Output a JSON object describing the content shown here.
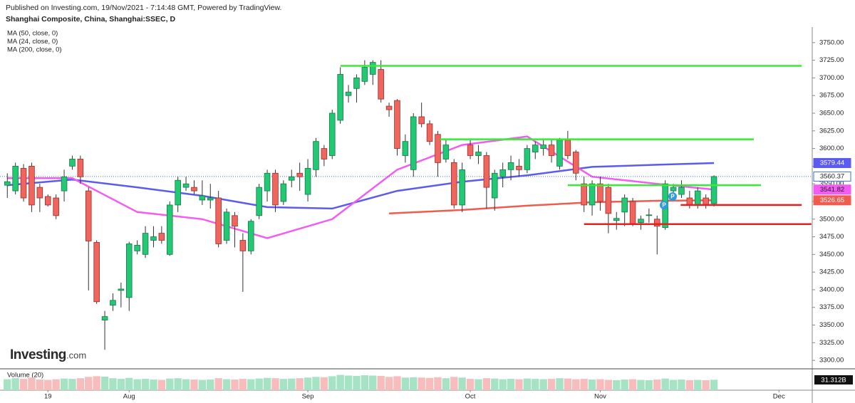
{
  "chart_data": {
    "type": "candlestick",
    "source": "Published on Investing.com, 19/Nov/2021 - 7:14:48 GMT, Powered by TradingView.",
    "title": "Shanghai Composite, China, Shanghai:SSEC, D",
    "watermark": [
      "Investing",
      ".com"
    ],
    "up_color": "#22c873",
    "down_color": "#f0655d",
    "candles": {
      "open": [
        3548,
        3540,
        3572,
        3575,
        3545,
        3532,
        3530,
        3540,
        3575,
        3585,
        3540,
        3467,
        3357,
        3378,
        3399,
        3389,
        3455,
        3450,
        3470,
        3480,
        3450,
        3520,
        3545,
        3545,
        3527,
        3527,
        3530,
        3470,
        3505,
        3470,
        3455,
        3505,
        3540,
        3565,
        3525,
        3555,
        3565,
        3535,
        3570,
        3600,
        3590,
        3640,
        3675,
        3685,
        3695,
        3705,
        3712,
        3660,
        3668,
        3590,
        3570,
        3645,
        3635,
        3620,
        3585,
        3580,
        3520,
        3605,
        3590,
        3590,
        3530,
        3560,
        3570,
        3575,
        3570,
        3595,
        3600,
        3605,
        3575,
        3612,
        3595,
        3550,
        3520,
        3550,
        3545,
        3498,
        3510,
        3525,
        3495,
        3505,
        3500,
        3488,
        3540,
        3535,
        3530,
        3520,
        3530,
        3522
      ],
      "high": [
        3565,
        3580,
        3578,
        3580,
        3550,
        3535,
        3535,
        3570,
        3590,
        3590,
        3545,
        3470,
        3370,
        3395,
        3410,
        3468,
        3470,
        3490,
        3490,
        3490,
        3525,
        3560,
        3560,
        3555,
        3555,
        3550,
        3540,
        3515,
        3510,
        3480,
        3500,
        3550,
        3570,
        3570,
        3555,
        3570,
        3580,
        3585,
        3615,
        3605,
        3655,
        3715,
        3690,
        3705,
        3725,
        3725,
        3725,
        3665,
        3670,
        3620,
        3650,
        3665,
        3640,
        3625,
        3612,
        3585,
        3580,
        3612,
        3605,
        3595,
        3570,
        3580,
        3590,
        3585,
        3605,
        3610,
        3612,
        3612,
        3615,
        3625,
        3598,
        3560,
        3555,
        3560,
        3550,
        3510,
        3535,
        3530,
        3505,
        3515,
        3505,
        3555,
        3550,
        3555,
        3540,
        3545,
        3535,
        3562
      ],
      "low": [
        3530,
        3535,
        3525,
        3510,
        3510,
        3518,
        3500,
        3525,
        3570,
        3550,
        3399,
        3380,
        3315,
        3370,
        3375,
        3370,
        3450,
        3445,
        3460,
        3465,
        3448,
        3510,
        3540,
        3535,
        3520,
        3515,
        3460,
        3465,
        3460,
        3397,
        3450,
        3500,
        3525,
        3510,
        3520,
        3545,
        3540,
        3525,
        3560,
        3575,
        3585,
        3635,
        3665,
        3665,
        3690,
        3690,
        3665,
        3645,
        3590,
        3580,
        3560,
        3630,
        3605,
        3560,
        3580,
        3515,
        3510,
        3585,
        3578,
        3515,
        3512,
        3545,
        3555,
        3560,
        3565,
        3585,
        3590,
        3580,
        3570,
        3585,
        3555,
        3510,
        3505,
        3512,
        3480,
        3485,
        3490,
        3490,
        3485,
        3495,
        3450,
        3485,
        3535,
        3530,
        3515,
        3515,
        3515,
        3518
      ],
      "close": [
        3553,
        3575,
        3530,
        3520,
        3530,
        3520,
        3505,
        3560,
        3585,
        3560,
        3469,
        3383,
        3362,
        3385,
        3401,
        3465,
        3463,
        3480,
        3475,
        3470,
        3520,
        3555,
        3550,
        3540,
        3533,
        3530,
        3465,
        3510,
        3490,
        3455,
        3497,
        3545,
        3565,
        3520,
        3550,
        3560,
        3560,
        3572,
        3610,
        3585,
        3650,
        3705,
        3680,
        3700,
        3715,
        3722,
        3670,
        3655,
        3600,
        3610,
        3645,
        3635,
        3610,
        3580,
        3605,
        3520,
        3570,
        3590,
        3595,
        3545,
        3565,
        3570,
        3580,
        3570,
        3600,
        3605,
        3605,
        3590,
        3612,
        3590,
        3565,
        3520,
        3550,
        3525,
        3508,
        3501,
        3530,
        3493,
        3500,
        3506,
        3490,
        3550,
        3545,
        3545,
        3520,
        3540,
        3520,
        3560.37
      ]
    },
    "volume": {
      "name": "Volume (20)",
      "values": [
        33,
        36,
        34,
        38,
        32,
        31,
        33,
        35,
        34,
        36,
        40,
        42,
        41,
        36,
        34,
        37,
        33,
        34,
        32,
        31,
        35,
        36,
        33,
        32,
        31,
        32,
        36,
        33,
        32,
        34,
        33,
        35,
        37,
        36,
        34,
        35,
        36,
        38,
        40,
        39,
        42,
        46,
        44,
        43,
        45,
        44,
        43,
        40,
        42,
        38,
        39,
        38,
        37,
        39,
        36,
        40,
        38,
        34,
        33,
        36,
        35,
        33,
        34,
        33,
        35,
        34,
        33,
        34,
        36,
        35,
        33,
        34,
        32,
        33,
        31,
        30,
        32,
        33,
        31,
        30,
        32,
        35,
        31,
        32,
        30,
        31,
        30,
        31.312
      ],
      "last_label": "31.312B",
      "ylim": [
        0,
        60
      ],
      "up_color": "#a6e3c4",
      "down_color": "#f7bcbc"
    },
    "series": [
      {
        "name": "MA (50, close, 0)",
        "color": "#5b5bf0",
        "x": [
          0,
          8,
          16,
          24,
          32,
          40,
          48,
          56,
          64,
          72,
          80,
          87
        ],
        "values": [
          3548,
          3556,
          3545,
          3533,
          3517,
          3515,
          3540,
          3553,
          3562,
          3574,
          3577,
          3579.44
        ]
      },
      {
        "name": "MA (24, close, 0)",
        "color": "#f25cf2",
        "x": [
          0,
          8,
          16,
          24,
          32,
          40,
          48,
          56,
          64,
          72,
          80,
          87
        ],
        "values": [
          3558,
          3558,
          3510,
          3500,
          3473,
          3500,
          3570,
          3605,
          3617,
          3560,
          3550,
          3541.82
        ]
      },
      {
        "name": "MA (200, close, 0)",
        "color": "#ef5b4f",
        "x": [
          47,
          56,
          64,
          72,
          80,
          87
        ],
        "values": [
          3508,
          3513,
          3519,
          3524,
          3526,
          3526.65
        ]
      }
    ],
    "hlines": [
      {
        "value": 3717,
        "color": "#33ee33",
        "x": [
          41,
          97.8
        ]
      },
      {
        "value": 3613,
        "color": "#33ee33",
        "x": [
          53.3,
          91.9
        ]
      },
      {
        "value": 3548,
        "color": "#33ee33",
        "x": [
          69,
          92.8
        ]
      },
      {
        "value": 3520,
        "color": "#e8201f",
        "x": [
          82.9,
          97.8
        ]
      },
      {
        "value": 3493,
        "color": "#e8201f",
        "x": [
          71,
          99
        ]
      }
    ],
    "annotations": [
      "P",
      "P"
    ],
    "xlim": [
      -0.9,
      99.1
    ],
    "xticks": [
      {
        "value": 5,
        "label": "19"
      },
      {
        "value": 15,
        "label": "Aug"
      },
      {
        "value": 37,
        "label": "Sep"
      },
      {
        "value": 57,
        "label": "Oct"
      },
      {
        "value": 73,
        "label": "Nov"
      },
      {
        "value": 95,
        "label": "Dec"
      }
    ],
    "ylim": [
      3288,
      3772
    ],
    "yticks": [
      {
        "value": 3300,
        "label": "3300.00"
      },
      {
        "value": 3325,
        "label": "3325.00"
      },
      {
        "value": 3350,
        "label": "3350.00"
      },
      {
        "value": 3375,
        "label": "3375.00"
      },
      {
        "value": 3400,
        "label": "3400.00"
      },
      {
        "value": 3425,
        "label": "3425.00"
      },
      {
        "value": 3450,
        "label": "3450.00"
      },
      {
        "value": 3475,
        "label": "3475.00"
      },
      {
        "value": 3500,
        "label": "3500.00"
      },
      {
        "value": 3525,
        "label": "3525.00"
      },
      {
        "value": 3550,
        "label": "3550.00"
      },
      {
        "value": 3575,
        "label": "3575.00"
      },
      {
        "value": 3600,
        "label": "3600.00"
      },
      {
        "value": 3625,
        "label": "3625.00"
      },
      {
        "value": 3650,
        "label": "3650.00"
      },
      {
        "value": 3675,
        "label": "3675.00"
      },
      {
        "value": 3700,
        "label": "3700.00"
      },
      {
        "value": 3725,
        "label": "3725.00"
      },
      {
        "value": 3750,
        "label": "3750.00"
      }
    ],
    "grid": false,
    "last_price_color": "#3b6fd8"
  }
}
